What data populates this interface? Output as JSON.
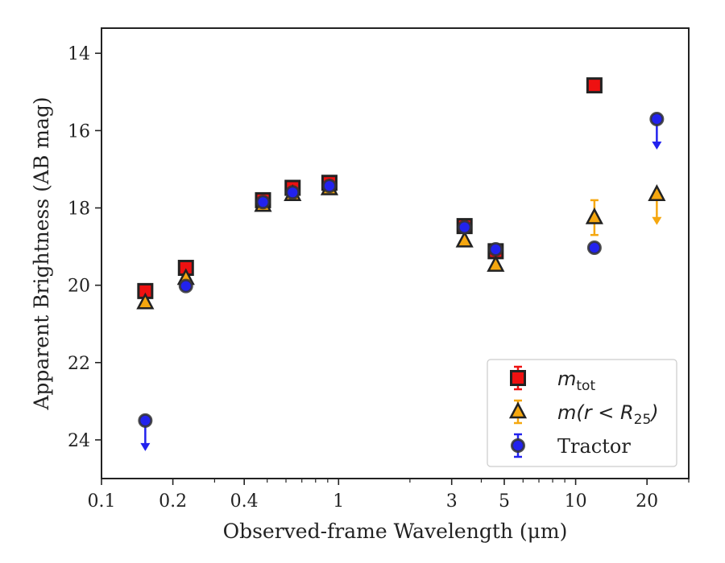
{
  "chart_data": {
    "type": "scatter",
    "xlabel": "Observed-frame Wavelength (μm)",
    "ylabel": "Apparent Brightness (AB mag)",
    "xscale": "log",
    "xlim": [
      0.1,
      30
    ],
    "ylim": [
      25,
      13.35
    ],
    "y_inverted": true,
    "xticks": [
      0.1,
      0.2,
      0.4,
      1,
      3,
      5,
      10,
      20
    ],
    "xtick_labels": [
      "0.1",
      "0.2",
      "0.4",
      "1",
      "3",
      "5",
      "10",
      "20"
    ],
    "yticks": [
      14,
      16,
      18,
      20,
      22,
      24
    ],
    "ytick_labels": [
      "14",
      "16",
      "18",
      "20",
      "22",
      "24"
    ],
    "legend_position": "lower-right",
    "series": [
      {
        "key": "mtot",
        "name": "m_tot",
        "legend_base": "m",
        "legend_sub": "tot",
        "marker": "square",
        "color": "#ee1111",
        "edge": "#222222",
        "points": [
          {
            "x": 0.153,
            "y": 20.15
          },
          {
            "x": 0.227,
            "y": 19.55
          },
          {
            "x": 0.48,
            "y": 17.8
          },
          {
            "x": 0.64,
            "y": 17.48
          },
          {
            "x": 0.915,
            "y": 17.35
          },
          {
            "x": 3.4,
            "y": 18.47
          },
          {
            "x": 4.6,
            "y": 19.12
          },
          {
            "x": 12.0,
            "y": 14.83
          }
        ]
      },
      {
        "key": "mr25",
        "name": "m(r < R25)",
        "legend_pre": "m(r < R",
        "legend_sub": "25",
        "legend_post": ")",
        "marker": "triangle",
        "color": "#f5a70f",
        "edge": "#222222",
        "points": [
          {
            "x": 0.153,
            "y": 20.45
          },
          {
            "x": 0.227,
            "y": 19.82
          },
          {
            "x": 0.48,
            "y": 17.93
          },
          {
            "x": 0.64,
            "y": 17.65
          },
          {
            "x": 0.915,
            "y": 17.5
          },
          {
            "x": 3.4,
            "y": 18.85
          },
          {
            "x": 4.6,
            "y": 19.48
          },
          {
            "x": 12.0,
            "y": 18.25,
            "yerr": 0.45
          },
          {
            "x": 22.0,
            "y": 17.65,
            "upper_limit": true
          }
        ]
      },
      {
        "key": "tractor",
        "name": "Tractor",
        "legend_base": "Tractor",
        "marker": "circle",
        "color": "#2222ee",
        "edge": "#333333",
        "points": [
          {
            "x": 0.153,
            "y": 23.5,
            "upper_limit": true
          },
          {
            "x": 0.227,
            "y": 20.02
          },
          {
            "x": 0.48,
            "y": 17.85
          },
          {
            "x": 0.64,
            "y": 17.6
          },
          {
            "x": 0.915,
            "y": 17.43
          },
          {
            "x": 3.4,
            "y": 18.5
          },
          {
            "x": 4.6,
            "y": 19.07
          },
          {
            "x": 12.0,
            "y": 19.03
          },
          {
            "x": 22.0,
            "y": 15.7,
            "upper_limit": true
          }
        ]
      }
    ]
  }
}
